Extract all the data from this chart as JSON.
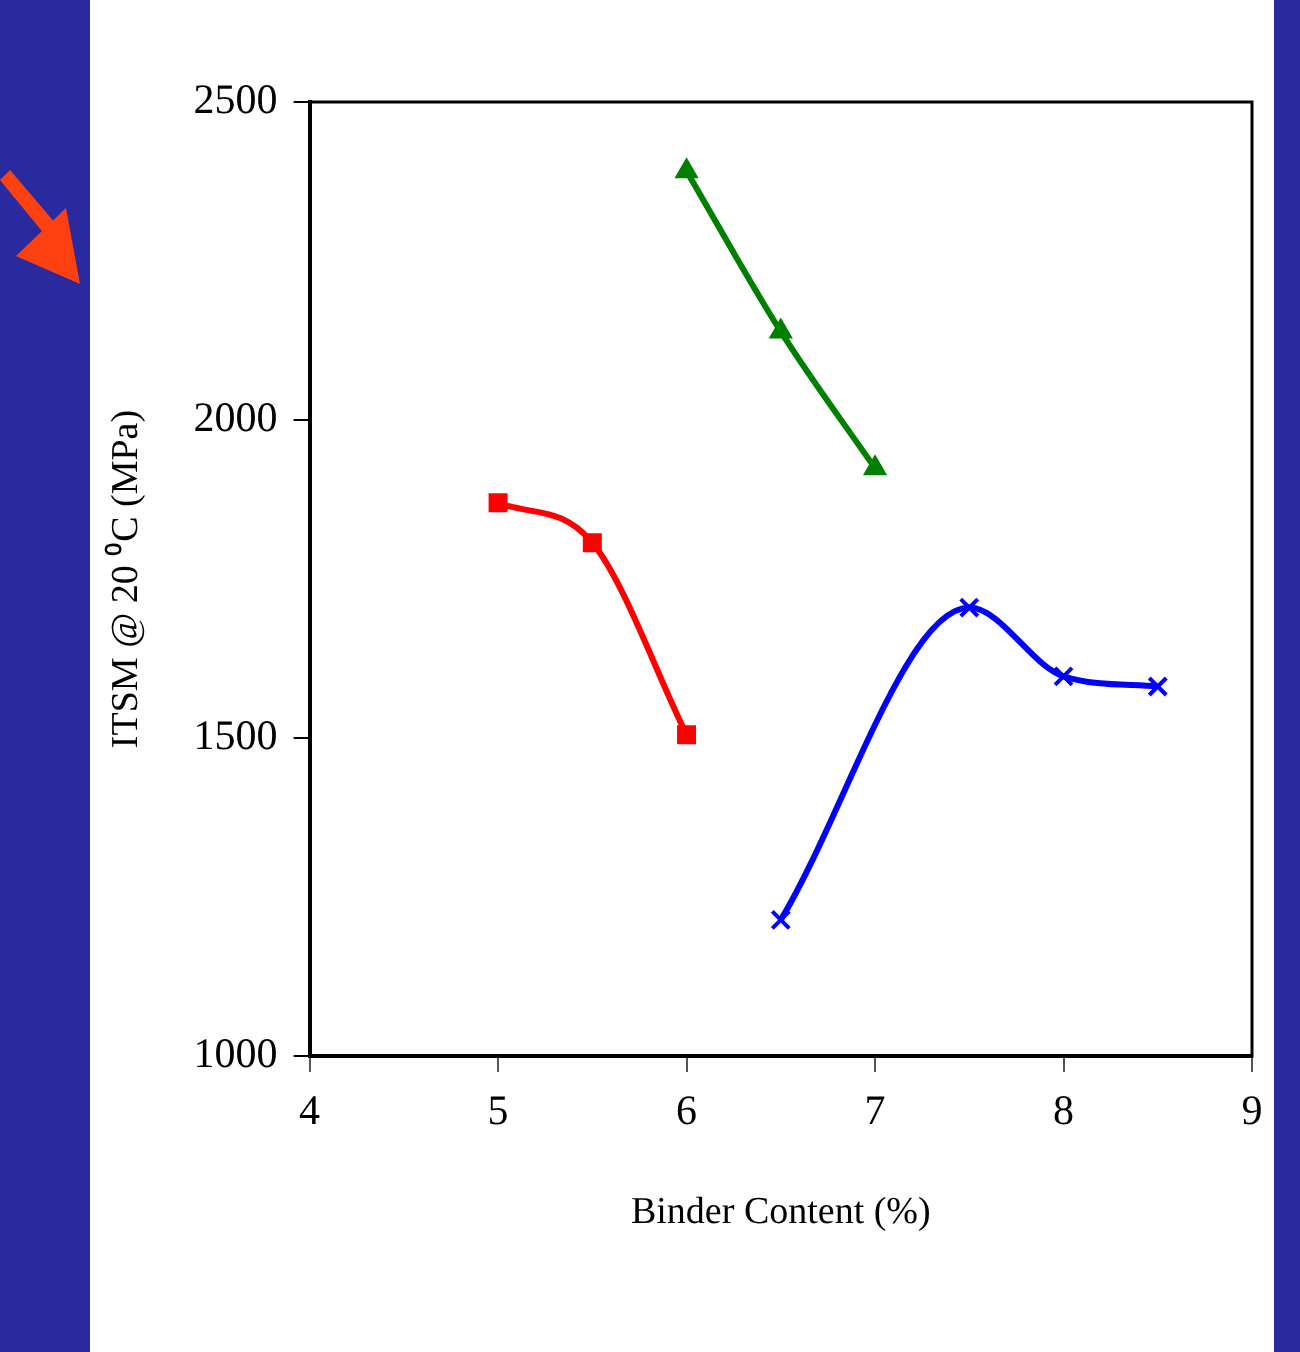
{
  "chart_data": {
    "type": "line",
    "xlabel": "Binder Content (%)",
    "ylabel": "ITSM @ 20 ⁰C (MPa)",
    "xlim": [
      4,
      9
    ],
    "xticks": [
      4,
      5,
      6,
      7,
      8,
      9
    ],
    "ylim": [
      1000,
      2500
    ],
    "yticks": [
      1000,
      1500,
      2000,
      2500
    ],
    "grid": false,
    "legend": false,
    "series": [
      {
        "color": "#ff0000",
        "marker": "square",
        "x": [
          5,
          5.5,
          6
        ],
        "values": [
          1870,
          1807,
          1505
        ]
      },
      {
        "color": "#008000",
        "marker": "triangle",
        "x": [
          6,
          6.5,
          7
        ],
        "values": [
          2391,
          2139,
          1924
        ]
      },
      {
        "color": "#0000ff",
        "marker": "cross",
        "x": [
          6.5,
          7.5,
          8,
          8.5
        ],
        "values": [
          1214,
          1705,
          1597,
          1581
        ]
      }
    ]
  }
}
